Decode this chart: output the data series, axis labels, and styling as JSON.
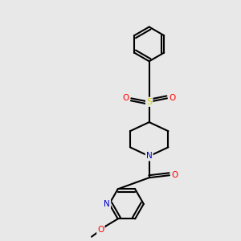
{
  "background_color": "#e8e8e8",
  "bond_color": "#000000",
  "lw": 1.5,
  "atom_colors": {
    "N": "#0000cc",
    "O": "#ff0000",
    "S": "#cccc00",
    "C": "#000000"
  },
  "font_size": 7.5,
  "font_size_small": 6.5
}
